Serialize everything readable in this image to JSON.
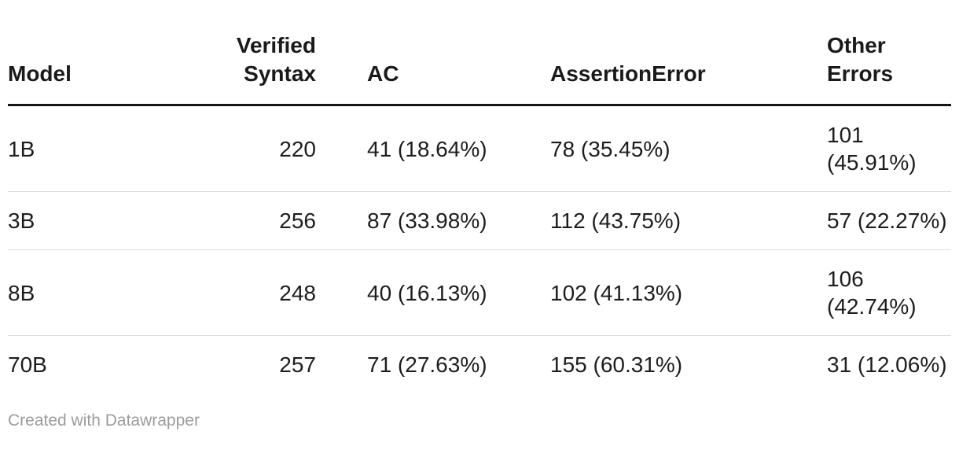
{
  "chart_data": {
    "type": "table",
    "columns": [
      "Model",
      "Verified Syntax",
      "AC",
      "AssertionError",
      "Other Errors"
    ],
    "rows": [
      [
        "1B",
        220,
        "41 (18.64%)",
        "78 (35.45%)",
        "101 (45.91%)"
      ],
      [
        "3B",
        256,
        "87 (33.98%)",
        "112 (43.75%)",
        "57 (22.27%)"
      ],
      [
        "8B",
        248,
        "40 (16.13%)",
        "102 (41.13%)",
        "106 (42.74%)"
      ],
      [
        "70B",
        257,
        "71 (27.63%)",
        "155 (60.31%)",
        "31 (12.06%)"
      ]
    ]
  },
  "table": {
    "headers": {
      "model": "Model",
      "verified_syntax": "Verified Syntax",
      "ac": "AC",
      "assertion_error": "AssertionError",
      "other_errors": "Other Errors"
    },
    "rows": [
      {
        "cells": [
          "1B",
          "220",
          "41 (18.64%)",
          "78 (35.45%)",
          "101 (45.91%)"
        ]
      },
      {
        "cells": [
          "3B",
          "256",
          "87 (33.98%)",
          "112 (43.75%)",
          "57 (22.27%)"
        ]
      },
      {
        "cells": [
          "8B",
          "248",
          "40 (16.13%)",
          "102 (41.13%)",
          "106 (42.74%)"
        ]
      },
      {
        "cells": [
          "70B",
          "257",
          "71 (27.63%)",
          "155 (60.31%)",
          "31 (12.06%)"
        ]
      }
    ]
  },
  "footer": {
    "attribution": "Created with Datawrapper"
  },
  "colors": {
    "header_text": "#1a1a1a",
    "body_text": "#1d1d1d",
    "header_rule": "#141414",
    "row_divider": "#dcdcdc",
    "footer_text": "#9c9c9c",
    "background": "#ffffff"
  }
}
